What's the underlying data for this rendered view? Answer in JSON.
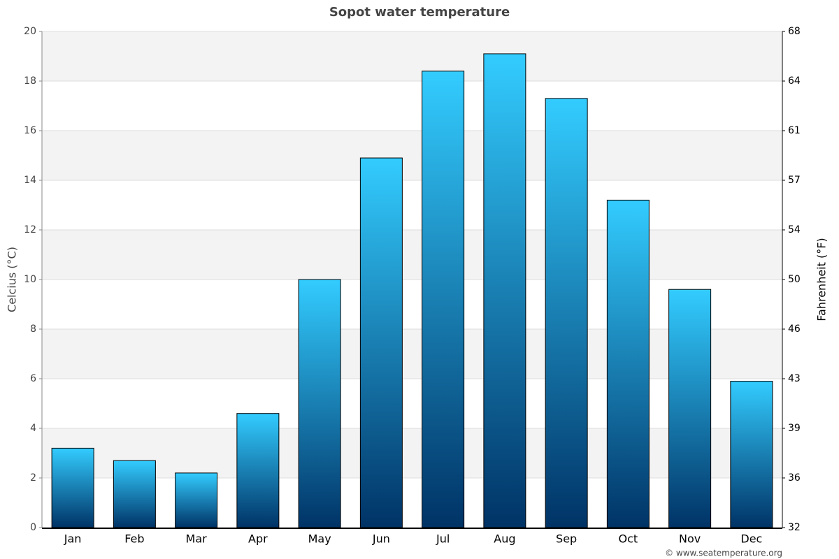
{
  "chart_data": {
    "type": "bar",
    "title": "Sopot water temperature",
    "y_label": "Celcius (°C)",
    "y2_label": "Fahrenheit (°F)",
    "credit": "© www.seatemperature.org",
    "categories": [
      "Jan",
      "Feb",
      "Mar",
      "Apr",
      "May",
      "Jun",
      "Jul",
      "Aug",
      "Sep",
      "Oct",
      "Nov",
      "Dec"
    ],
    "values": [
      3.2,
      2.7,
      2.2,
      4.6,
      10.0,
      14.9,
      18.4,
      19.1,
      17.3,
      13.2,
      9.6,
      5.9
    ],
    "gradient": [
      "#33ccff",
      "#003366"
    ],
    "ylim": [
      0,
      20
    ],
    "yticks": [
      0,
      2,
      4,
      6,
      8,
      10,
      12,
      14,
      16,
      18,
      20
    ],
    "y2lim": [
      32,
      68
    ],
    "y2ticks": [
      32,
      {
        "value": 35.6,
        "label": "36"
      },
      {
        "value": 39.2,
        "label": "39"
      },
      {
        "value": 42.8,
        "label": "43"
      },
      {
        "value": 46.4,
        "label": "46"
      },
      50,
      {
        "value": 53.6,
        "label": "54"
      },
      {
        "value": 57.2,
        "label": "57"
      },
      {
        "value": 60.8,
        "label": "61"
      },
      {
        "value": 64.4,
        "label": "64"
      },
      68
    ],
    "grid": true,
    "stripes": "#f3f3f3"
  }
}
